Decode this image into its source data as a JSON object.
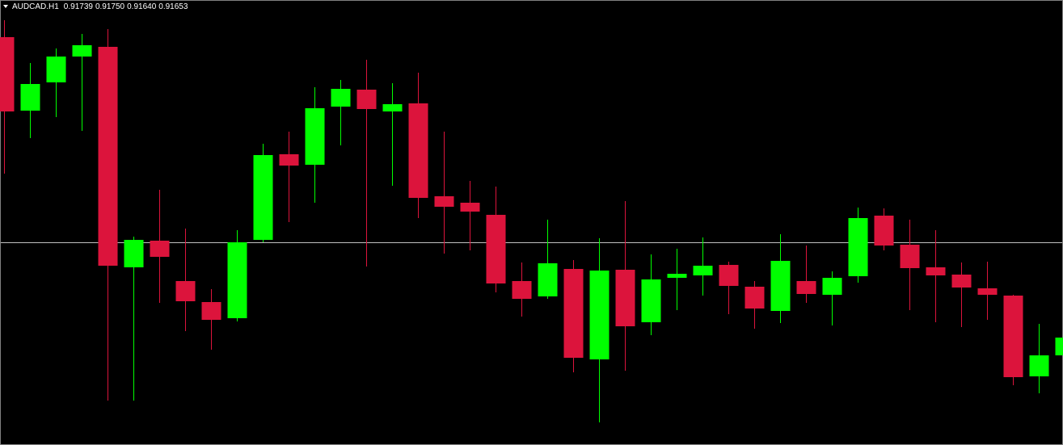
{
  "chart_data": {
    "type": "candlestick",
    "title": "AUDCAD.H1",
    "quote": [
      "0.91739",
      "0.91750",
      "0.91640",
      "0.91653"
    ],
    "up_color": "#00ff00",
    "down_color": "#dc143c",
    "price_line": 0.917,
    "price_line_color": "#c0c0c0",
    "open": [
      0.91954,
      0.91863,
      0.91898,
      0.9193,
      0.91942,
      0.91669,
      0.91702,
      0.91652,
      0.91626,
      0.91606,
      0.91703,
      0.91809,
      0.91796,
      0.91868,
      0.91889,
      0.91862,
      0.91872,
      0.91757,
      0.91749,
      0.91734,
      0.91652,
      0.91633,
      0.91667,
      0.91555,
      0.91666,
      0.91601,
      0.91656,
      0.91659,
      0.91672,
      0.91645,
      0.91615,
      0.91652,
      0.91635,
      0.91658,
      0.91733,
      0.91697,
      0.91669,
      0.9166,
      0.91643,
      0.91634,
      0.91534,
      0.9156
    ],
    "high": [
      0.91975,
      0.91922,
      0.9194,
      0.91958,
      0.91964,
      0.91707,
      0.91765,
      0.91717,
      0.91642,
      0.91715,
      0.91822,
      0.91837,
      0.91892,
      0.91901,
      0.91926,
      0.91897,
      0.9191,
      0.91837,
      0.91776,
      0.91769,
      0.91675,
      0.91728,
      0.91678,
      0.91705,
      0.91751,
      0.91685,
      0.91692,
      0.91706,
      0.91676,
      0.91652,
      0.9171,
      0.91696,
      0.91664,
      0.91743,
      0.91742,
      0.91728,
      0.91715,
      0.91675,
      0.91676,
      0.91635,
      0.91599,
      0.91608
    ],
    "low": [
      0.91785,
      0.91829,
      0.91855,
      0.91838,
      0.91504,
      0.91504,
      0.91625,
      0.9159,
      0.91567,
      0.91602,
      0.917,
      0.91725,
      0.91749,
      0.9182,
      0.9167,
      0.9177,
      0.9173,
      0.91686,
      0.9169,
      0.91638,
      0.91608,
      0.9163,
      0.91539,
      0.91477,
      0.91541,
      0.91585,
      0.91616,
      0.91634,
      0.91611,
      0.91593,
      0.916,
      0.91625,
      0.91597,
      0.9165,
      0.9169,
      0.91616,
      0.91601,
      0.91595,
      0.91604,
      0.91523,
      0.91513,
      0.9154
    ],
    "close": [
      0.91862,
      0.91896,
      0.9193,
      0.91944,
      0.91671,
      0.91703,
      0.91682,
      0.91627,
      0.91604,
      0.917,
      0.91808,
      0.91795,
      0.91866,
      0.9189,
      0.91865,
      0.91871,
      0.91755,
      0.91744,
      0.91738,
      0.91649,
      0.9163,
      0.91674,
      0.91557,
      0.91665,
      0.91596,
      0.91654,
      0.91661,
      0.91671,
      0.91646,
      0.91618,
      0.91677,
      0.91636,
      0.91656,
      0.9173,
      0.91696,
      0.91668,
      0.91659,
      0.91644,
      0.91635,
      0.91533,
      0.9156,
      0.91582
    ]
  }
}
